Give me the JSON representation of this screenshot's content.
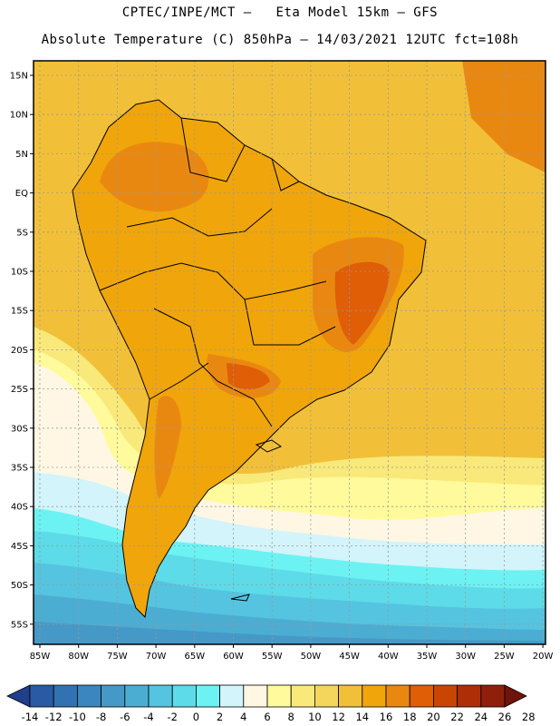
{
  "title_line1": "CPTEC/INPE/MCT –   Eta Model 15km – GFS",
  "title_line2": "Absolute Temperature (C) 850hPa – 14/03/2021 12UTC fct=108h",
  "lat_labels": [
    "15N",
    "10N",
    "5N",
    "EQ",
    "5S",
    "10S",
    "15S",
    "20S",
    "25S",
    "30S",
    "35S",
    "40S",
    "45S",
    "50S",
    "55S"
  ],
  "lon_labels": [
    "85W",
    "80W",
    "75W",
    "70W",
    "65W",
    "60W",
    "55W",
    "50W",
    "45W",
    "40W",
    "35W",
    "30W",
    "25W",
    "20W"
  ],
  "colorbar": {
    "labels": [
      "-14",
      "-12",
      "-10",
      "-8",
      "-6",
      "-4",
      "-2",
      "0",
      "2",
      "4",
      "6",
      "8",
      "10",
      "12",
      "14",
      "16",
      "18",
      "20",
      "22",
      "24",
      "26",
      "28"
    ],
    "colors": [
      "#213e8c",
      "#2a5aa3",
      "#3271b2",
      "#3b86bf",
      "#4599c6",
      "#4cadd2",
      "#55c4e0",
      "#5ddbe8",
      "#6cf2f2",
      "#d2f4fa",
      "#fff7e4",
      "#fffa9b",
      "#f8e97a",
      "#f5d65c",
      "#f2c038",
      "#f0a50a",
      "#e98811",
      "#df5e06",
      "#c94504",
      "#ae2f07",
      "#8f1f0b",
      "#6f140c"
    ]
  },
  "map": {
    "ocean_color": "#f2c038",
    "land_color": "#f0a50a",
    "hot_color": "#e98811",
    "hotter_color": "#df5e06",
    "cool_colors": [
      "#f8e97a",
      "#fffa9b",
      "#fff7e4",
      "#d2f4fa",
      "#6cf2f2",
      "#5ddbe8",
      "#55c4e0",
      "#4cadd2",
      "#4599c6"
    ]
  }
}
